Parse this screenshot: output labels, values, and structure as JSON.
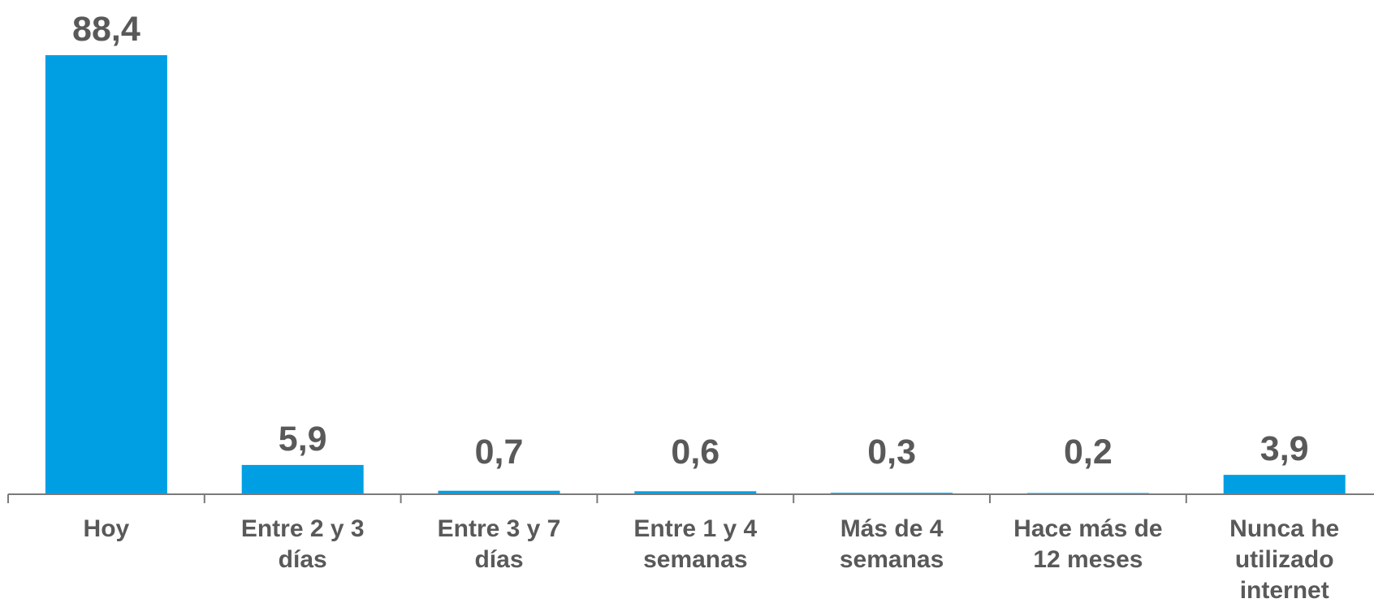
{
  "chart_data": {
    "type": "bar",
    "categories": [
      [
        "Hoy"
      ],
      [
        "Entre 2 y 3",
        "días"
      ],
      [
        "Entre 3 y 7",
        "días"
      ],
      [
        "Entre 1 y 4",
        "semanas"
      ],
      [
        "Más de 4",
        "semanas"
      ],
      [
        "Hace más de",
        "12 meses"
      ],
      [
        "Nunca he",
        "utilizado",
        "internet"
      ]
    ],
    "values": [
      88.4,
      5.9,
      0.7,
      0.6,
      0.3,
      0.2,
      3.9
    ],
    "value_labels": [
      "88,4",
      "5,9",
      "0,7",
      "0,6",
      "0,3",
      "0,2",
      "3,9"
    ],
    "title": "",
    "xlabel": "",
    "ylabel": "",
    "ylim": [
      0,
      88.4
    ],
    "grid": false,
    "legend": "none",
    "colors": {
      "bar": "#009fe3",
      "text": "#595959",
      "axis": "#7a7a7a"
    }
  }
}
